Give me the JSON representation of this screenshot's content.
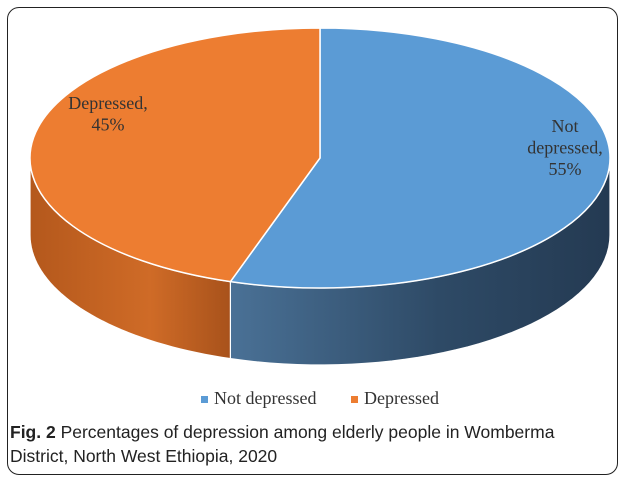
{
  "figure": {
    "label": "Fig. 2",
    "caption": "Percentages of depression among elderly people in Womberma District, North West Ethiopia, 2020"
  },
  "chart_data": {
    "type": "pie",
    "style": "3d",
    "categories": [
      "Not depressed",
      "Depressed"
    ],
    "values": [
      55,
      45
    ],
    "unit": "%",
    "data_labels": [
      [
        "Not",
        "depressed,",
        "55%"
      ],
      [
        "Depressed,",
        "45%"
      ]
    ],
    "legend": {
      "position": "bottom",
      "entries": [
        "Not depressed",
        "Depressed"
      ]
    },
    "colors": {
      "Not depressed": "#5b9bd5",
      "Depressed": "#ed7d31",
      "Not depressed side": "#2b4257",
      "Depressed side": "#b85a1d",
      "label_text": "#333333"
    }
  }
}
